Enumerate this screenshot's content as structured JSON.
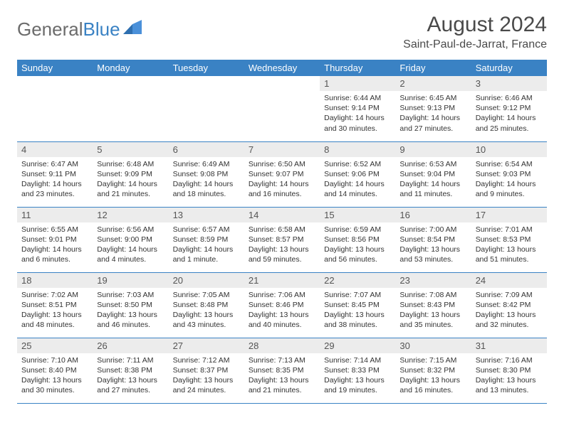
{
  "brand": {
    "part1": "General",
    "part2": "Blue"
  },
  "title": "August 2024",
  "location": "Saint-Paul-de-Jarrat, France",
  "header_bg": "#3a82c4",
  "daynum_bg": "#ececec",
  "border_color": "#3a82c4",
  "columns": [
    "Sunday",
    "Monday",
    "Tuesday",
    "Wednesday",
    "Thursday",
    "Friday",
    "Saturday"
  ],
  "weeks": [
    [
      {
        "n": "",
        "sr": "",
        "ss": "",
        "dl": "",
        "empty": true
      },
      {
        "n": "",
        "sr": "",
        "ss": "",
        "dl": "",
        "empty": true
      },
      {
        "n": "",
        "sr": "",
        "ss": "",
        "dl": "",
        "empty": true
      },
      {
        "n": "",
        "sr": "",
        "ss": "",
        "dl": "",
        "empty": true
      },
      {
        "n": "1",
        "sr": "6:44 AM",
        "ss": "9:14 PM",
        "dl": "14 hours and 30 minutes."
      },
      {
        "n": "2",
        "sr": "6:45 AM",
        "ss": "9:13 PM",
        "dl": "14 hours and 27 minutes."
      },
      {
        "n": "3",
        "sr": "6:46 AM",
        "ss": "9:12 PM",
        "dl": "14 hours and 25 minutes."
      }
    ],
    [
      {
        "n": "4",
        "sr": "6:47 AM",
        "ss": "9:11 PM",
        "dl": "14 hours and 23 minutes."
      },
      {
        "n": "5",
        "sr": "6:48 AM",
        "ss": "9:09 PM",
        "dl": "14 hours and 21 minutes."
      },
      {
        "n": "6",
        "sr": "6:49 AM",
        "ss": "9:08 PM",
        "dl": "14 hours and 18 minutes."
      },
      {
        "n": "7",
        "sr": "6:50 AM",
        "ss": "9:07 PM",
        "dl": "14 hours and 16 minutes."
      },
      {
        "n": "8",
        "sr": "6:52 AM",
        "ss": "9:06 PM",
        "dl": "14 hours and 14 minutes."
      },
      {
        "n": "9",
        "sr": "6:53 AM",
        "ss": "9:04 PM",
        "dl": "14 hours and 11 minutes."
      },
      {
        "n": "10",
        "sr": "6:54 AM",
        "ss": "9:03 PM",
        "dl": "14 hours and 9 minutes."
      }
    ],
    [
      {
        "n": "11",
        "sr": "6:55 AM",
        "ss": "9:01 PM",
        "dl": "14 hours and 6 minutes."
      },
      {
        "n": "12",
        "sr": "6:56 AM",
        "ss": "9:00 PM",
        "dl": "14 hours and 4 minutes."
      },
      {
        "n": "13",
        "sr": "6:57 AM",
        "ss": "8:59 PM",
        "dl": "14 hours and 1 minute."
      },
      {
        "n": "14",
        "sr": "6:58 AM",
        "ss": "8:57 PM",
        "dl": "13 hours and 59 minutes."
      },
      {
        "n": "15",
        "sr": "6:59 AM",
        "ss": "8:56 PM",
        "dl": "13 hours and 56 minutes."
      },
      {
        "n": "16",
        "sr": "7:00 AM",
        "ss": "8:54 PM",
        "dl": "13 hours and 53 minutes."
      },
      {
        "n": "17",
        "sr": "7:01 AM",
        "ss": "8:53 PM",
        "dl": "13 hours and 51 minutes."
      }
    ],
    [
      {
        "n": "18",
        "sr": "7:02 AM",
        "ss": "8:51 PM",
        "dl": "13 hours and 48 minutes."
      },
      {
        "n": "19",
        "sr": "7:03 AM",
        "ss": "8:50 PM",
        "dl": "13 hours and 46 minutes."
      },
      {
        "n": "20",
        "sr": "7:05 AM",
        "ss": "8:48 PM",
        "dl": "13 hours and 43 minutes."
      },
      {
        "n": "21",
        "sr": "7:06 AM",
        "ss": "8:46 PM",
        "dl": "13 hours and 40 minutes."
      },
      {
        "n": "22",
        "sr": "7:07 AM",
        "ss": "8:45 PM",
        "dl": "13 hours and 38 minutes."
      },
      {
        "n": "23",
        "sr": "7:08 AM",
        "ss": "8:43 PM",
        "dl": "13 hours and 35 minutes."
      },
      {
        "n": "24",
        "sr": "7:09 AM",
        "ss": "8:42 PM",
        "dl": "13 hours and 32 minutes."
      }
    ],
    [
      {
        "n": "25",
        "sr": "7:10 AM",
        "ss": "8:40 PM",
        "dl": "13 hours and 30 minutes."
      },
      {
        "n": "26",
        "sr": "7:11 AM",
        "ss": "8:38 PM",
        "dl": "13 hours and 27 minutes."
      },
      {
        "n": "27",
        "sr": "7:12 AM",
        "ss": "8:37 PM",
        "dl": "13 hours and 24 minutes."
      },
      {
        "n": "28",
        "sr": "7:13 AM",
        "ss": "8:35 PM",
        "dl": "13 hours and 21 minutes."
      },
      {
        "n": "29",
        "sr": "7:14 AM",
        "ss": "8:33 PM",
        "dl": "13 hours and 19 minutes."
      },
      {
        "n": "30",
        "sr": "7:15 AM",
        "ss": "8:32 PM",
        "dl": "13 hours and 16 minutes."
      },
      {
        "n": "31",
        "sr": "7:16 AM",
        "ss": "8:30 PM",
        "dl": "13 hours and 13 minutes."
      }
    ]
  ],
  "labels": {
    "sunrise": "Sunrise:",
    "sunset": "Sunset:",
    "daylight": "Daylight:"
  }
}
